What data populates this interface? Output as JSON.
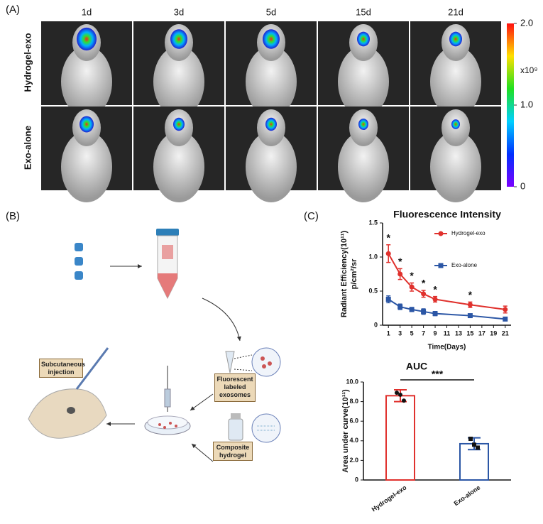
{
  "panel_a": {
    "label": "(A)",
    "columns": [
      "1d",
      "3d",
      "5d",
      "15d",
      "21d"
    ],
    "rows": [
      "Hydrogel-exo",
      "Exo-alone"
    ],
    "colorbar": {
      "range": [
        0,
        2
      ],
      "ticks": [
        {
          "value": 2,
          "label": "2.0"
        },
        {
          "value": 1,
          "label": "1.0"
        },
        0
      ],
      "unit": "x10⁹"
    }
  },
  "panel_b": {
    "label": "(B)",
    "steps": [
      "Fluorescent labeled exosomes",
      "Composite hydrogel",
      "Subcutaneous injection"
    ]
  },
  "panel_c": {
    "label": "(C)"
  },
  "chart_data": [
    {
      "type": "line",
      "title": "Fluorescence Intensity",
      "y_label": [
        "Radiant Efficiency(10¹¹)",
        "p/cm²/sr"
      ],
      "x_label": "Time(Days)",
      "xlim": [
        0,
        22
      ],
      "xticks": [
        1,
        3,
        5,
        7,
        9,
        11,
        13,
        15,
        17,
        19,
        21
      ],
      "ylim": [
        0,
        1.5
      ],
      "yticks": [
        0,
        0.5,
        {
          "value": 1,
          "label": "1.0"
        },
        1.5
      ],
      "legend": "upper right",
      "series": [
        {
          "name": "Hydrogel-exo",
          "color": "#e0312d",
          "marker": "circle",
          "x": [
            1,
            3,
            5,
            7,
            9,
            15,
            21
          ],
          "values": [
            1.05,
            0.75,
            0.56,
            0.46,
            0.38,
            0.3,
            0.23
          ],
          "errors": [
            0.13,
            0.08,
            0.06,
            0.05,
            0.04,
            0.04,
            0.05
          ]
        },
        {
          "name": "Exo-alone",
          "color": "#2b56a5",
          "marker": "square",
          "x": [
            1,
            3,
            5,
            7,
            9,
            15,
            21
          ],
          "values": [
            0.38,
            0.27,
            0.23,
            0.2,
            0.17,
            0.14,
            0.09
          ],
          "errors": [
            0.05,
            0.04,
            0.03,
            0.04,
            0.03,
            0.02,
            0.02
          ]
        }
      ],
      "annotations": [
        {
          "text": "*",
          "x": 1
        },
        {
          "text": "*",
          "x": 3
        },
        {
          "text": "*",
          "x": 5
        },
        {
          "text": "*",
          "x": 7
        },
        {
          "text": "*",
          "x": 9
        },
        {
          "text": "*",
          "x": 15
        }
      ]
    },
    {
      "type": "bar",
      "title": "AUC",
      "y_label": "Area under curve(10¹¹)",
      "categories": [
        "Hydrogel-exo",
        "Exo-alone"
      ],
      "values": [
        8.6,
        3.7
      ],
      "errors": [
        0.6,
        0.6
      ],
      "points": [
        [
          8.9,
          8.7,
          8.1
        ],
        [
          4.2,
          3.6,
          3.3
        ]
      ],
      "markers": [
        "circle",
        "square"
      ],
      "colors": [
        "#e0312d",
        "#2b56a5"
      ],
      "ylim": [
        0,
        10
      ],
      "yticks": [
        0,
        {
          "value": 2,
          "label": "2.0"
        },
        {
          "value": 4,
          "label": "4.0"
        },
        {
          "value": 6,
          "label": "6.0"
        },
        {
          "value": 8,
          "label": "8.0"
        },
        {
          "value": 10,
          "label": "10.0"
        }
      ],
      "annotations": [
        {
          "text": "***"
        }
      ]
    }
  ]
}
